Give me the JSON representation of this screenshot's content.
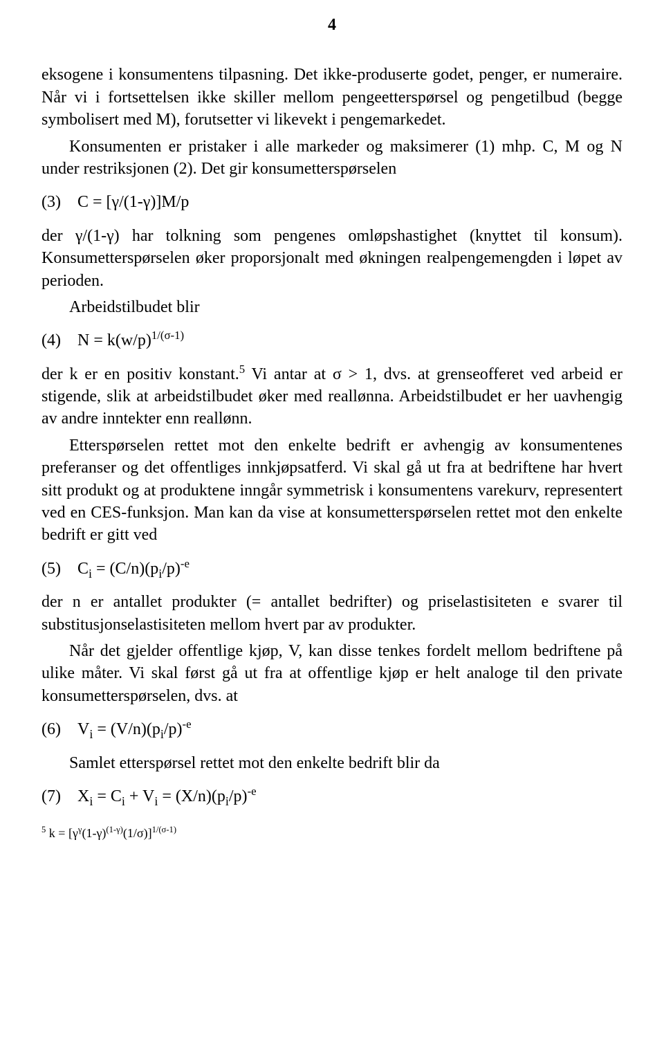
{
  "page_number": "4",
  "p1": "eksogene i konsumentens tilpasning. Det ikke-produserte godet, penger, er numeraire. Når vi i fortsettelsen ikke skiller mellom pengeetterspørsel og pengetilbud (begge symbolisert med M), forutsetter vi likevekt i pengemarkedet.",
  "p2": "Konsumenten er pristaker i alle markeder og maksimerer (1) mhp. C, M og N under restriksjonen (2). Det gir konsumetterspørselen",
  "eq3": "(3) C = [γ/(1-γ)]M/p",
  "p3": "der γ/(1-γ) har tolkning som pengenes omløpshastighet (knyttet til konsum). Konsumetterspørselen øker proporsjonalt med økningen realpengemengden i løpet av perioden.",
  "p4": "Arbeidstilbudet blir",
  "eq4_a": "(4) N = k(w/p)",
  "eq4_sup": "1/(σ-1)",
  "p5_a": "der k er en positiv konstant.",
  "p5_sup": "5",
  "p5_b": " Vi antar at σ > 1, dvs. at grenseofferet ved arbeid er stigende, slik at arbeidstilbudet øker med reallønna. Arbeidstilbudet er her uavhengig av andre inntekter enn reallønn.",
  "p6": "Etterspørselen rettet mot den enkelte bedrift er avhengig av konsumentenes preferanser og det offentliges innkjøpsatferd. Vi skal gå ut fra at bedriftene har hvert sitt produkt og at produktene inngår symmetrisk i konsumentens varekurv, representert ved en CES-funksjon. Man kan da vise at konsumetterspørselen rettet mot den enkelte bedrift er gitt ved",
  "eq5_a": "(5) C",
  "eq5_sub1": "i",
  "eq5_b": " = (C/n)(p",
  "eq5_sub2": "i",
  "eq5_c": "/p)",
  "eq5_sup": "-e",
  "p7": "der n er antallet produkter (= antallet bedrifter) og priselastisiteten e svarer til substitusjonselastisiteten mellom hvert par av produkter.",
  "p8": "Når det gjelder offentlige kjøp, V, kan disse tenkes fordelt mellom bedriftene på ulike måter. Vi skal først gå ut fra at offentlige kjøp er helt analoge til den private konsumetterspørselen, dvs. at",
  "eq6_a": "(6) V",
  "eq6_sub1": "i",
  "eq6_b": " = (V/n)(p",
  "eq6_sub2": "i",
  "eq6_c": "/p)",
  "eq6_sup": "-e",
  "p9": "Samlet etterspørsel rettet mot den enkelte bedrift blir da",
  "eq7_a": "(7) X",
  "eq7_sub1": "i",
  "eq7_b": " = C",
  "eq7_sub2": "i",
  "eq7_c": " + V",
  "eq7_sub3": "i",
  "eq7_d": " = (X/n)(p",
  "eq7_sub4": "i",
  "eq7_e": "/p)",
  "eq7_sup": "-e",
  "fn_sup": "5",
  "fn_a": "  k = [γ",
  "fn_sup2": "γ",
  "fn_b": "(1-γ)",
  "fn_sup3": "(1-γ)",
  "fn_c": "(1/σ)]",
  "fn_sup4": "1/(σ-1)"
}
